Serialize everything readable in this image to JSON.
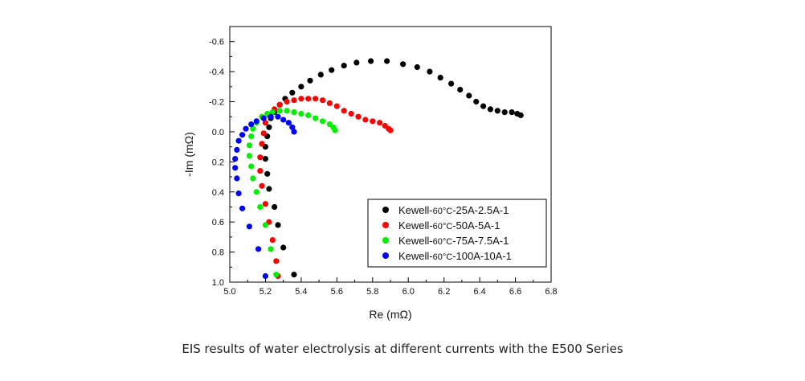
{
  "caption": "EIS results of water electrolysis at different currents with the E500 Series",
  "chart_data": {
    "type": "scatter",
    "xlabel": "Re (mΩ)",
    "ylabel": "-Im (mΩ)",
    "xlim": [
      5.0,
      6.8
    ],
    "ylim": [
      -0.7,
      1.0
    ],
    "y_inverted": true,
    "x_ticks": [
      "5.0",
      "5.2",
      "5.4",
      "5.6",
      "5.8",
      "6.0",
      "6.2",
      "6.4",
      "6.6",
      "6.8"
    ],
    "y_ticks": [
      "-0.6",
      "-0.4",
      "-0.2",
      "0.0",
      "0.2",
      "0.4",
      "0.6",
      "0.8",
      "1.0"
    ],
    "legend_position": "bottom-right",
    "series": [
      {
        "name": "Kewell-60°C-25A-2.5A-1",
        "color": "#000000",
        "points": [
          [
            5.36,
            0.95
          ],
          [
            5.3,
            0.77
          ],
          [
            5.27,
            0.62
          ],
          [
            5.25,
            0.5
          ],
          [
            5.22,
            0.38
          ],
          [
            5.21,
            0.28
          ],
          [
            5.2,
            0.18
          ],
          [
            5.2,
            0.1
          ],
          [
            5.21,
            0.03
          ],
          [
            5.22,
            -0.03
          ],
          [
            5.23,
            -0.09
          ],
          [
            5.25,
            -0.13
          ],
          [
            5.28,
            -0.18
          ],
          [
            5.31,
            -0.22
          ],
          [
            5.35,
            -0.26
          ],
          [
            5.4,
            -0.3
          ],
          [
            5.45,
            -0.34
          ],
          [
            5.51,
            -0.38
          ],
          [
            5.57,
            -0.41
          ],
          [
            5.64,
            -0.44
          ],
          [
            5.71,
            -0.46
          ],
          [
            5.79,
            -0.47
          ],
          [
            5.88,
            -0.47
          ],
          [
            5.97,
            -0.45
          ],
          [
            6.05,
            -0.43
          ],
          [
            6.12,
            -0.4
          ],
          [
            6.18,
            -0.36
          ],
          [
            6.24,
            -0.32
          ],
          [
            6.29,
            -0.28
          ],
          [
            6.34,
            -0.24
          ],
          [
            6.38,
            -0.2
          ],
          [
            6.42,
            -0.17
          ],
          [
            6.46,
            -0.15
          ],
          [
            6.5,
            -0.14
          ],
          [
            6.54,
            -0.13
          ],
          [
            6.58,
            -0.13
          ],
          [
            6.61,
            -0.12
          ],
          [
            6.63,
            -0.11
          ]
        ]
      },
      {
        "name": "Kewell-60°C-50A-5A-1",
        "color": "#ff0000",
        "points": [
          [
            5.27,
            0.96
          ],
          [
            5.26,
            0.86
          ],
          [
            5.24,
            0.72
          ],
          [
            5.22,
            0.6
          ],
          [
            5.2,
            0.48
          ],
          [
            5.18,
            0.36
          ],
          [
            5.17,
            0.26
          ],
          [
            5.17,
            0.17
          ],
          [
            5.18,
            0.08
          ],
          [
            5.19,
            0.01
          ],
          [
            5.2,
            -0.06
          ],
          [
            5.22,
            -0.11
          ],
          [
            5.25,
            -0.15
          ],
          [
            5.28,
            -0.18
          ],
          [
            5.32,
            -0.2
          ],
          [
            5.36,
            -0.21
          ],
          [
            5.4,
            -0.22
          ],
          [
            5.44,
            -0.22
          ],
          [
            5.48,
            -0.22
          ],
          [
            5.52,
            -0.21
          ],
          [
            5.56,
            -0.19
          ],
          [
            5.6,
            -0.17
          ],
          [
            5.64,
            -0.14
          ],
          [
            5.68,
            -0.12
          ],
          [
            5.72,
            -0.1
          ],
          [
            5.76,
            -0.08
          ],
          [
            5.8,
            -0.07
          ],
          [
            5.84,
            -0.06
          ],
          [
            5.87,
            -0.04
          ],
          [
            5.89,
            -0.02
          ],
          [
            5.9,
            -0.01
          ]
        ]
      },
      {
        "name": "Kewell-60°C-75A-7.5A-1",
        "color": "#00ee00",
        "points": [
          [
            5.26,
            0.95
          ],
          [
            5.23,
            0.78
          ],
          [
            5.2,
            0.62
          ],
          [
            5.17,
            0.5
          ],
          [
            5.15,
            0.4
          ],
          [
            5.13,
            0.31
          ],
          [
            5.12,
            0.23
          ],
          [
            5.11,
            0.16
          ],
          [
            5.11,
            0.09
          ],
          [
            5.12,
            0.03
          ],
          [
            5.13,
            -0.02
          ],
          [
            5.15,
            -0.06
          ],
          [
            5.18,
            -0.1
          ],
          [
            5.21,
            -0.12
          ],
          [
            5.24,
            -0.13
          ],
          [
            5.28,
            -0.14
          ],
          [
            5.32,
            -0.14
          ],
          [
            5.36,
            -0.13
          ],
          [
            5.4,
            -0.12
          ],
          [
            5.44,
            -0.11
          ],
          [
            5.48,
            -0.09
          ],
          [
            5.52,
            -0.07
          ],
          [
            5.56,
            -0.05
          ],
          [
            5.58,
            -0.03
          ],
          [
            5.59,
            -0.01
          ]
        ]
      },
      {
        "name": "Kewell-60°C-100A-10A-1",
        "color": "#0000ff",
        "points": [
          [
            5.2,
            0.96
          ],
          [
            5.16,
            0.78
          ],
          [
            5.11,
            0.63
          ],
          [
            5.07,
            0.51
          ],
          [
            5.05,
            0.41
          ],
          [
            5.04,
            0.31
          ],
          [
            5.03,
            0.24
          ],
          [
            5.03,
            0.18
          ],
          [
            5.04,
            0.12
          ],
          [
            5.05,
            0.06
          ],
          [
            5.07,
            0.02
          ],
          [
            5.09,
            -0.02
          ],
          [
            5.12,
            -0.05
          ],
          [
            5.15,
            -0.07
          ],
          [
            5.19,
            -0.09
          ],
          [
            5.23,
            -0.1
          ],
          [
            5.27,
            -0.1
          ],
          [
            5.3,
            -0.08
          ],
          [
            5.33,
            -0.06
          ],
          [
            5.35,
            -0.03
          ],
          [
            5.36,
            0.0
          ]
        ]
      }
    ],
    "legend": [
      {
        "prefix": "Kewell-",
        "temp": "60°C",
        "suffix": "-25A-2.5A-1"
      },
      {
        "prefix": "Kewell-",
        "temp": "60°C",
        "suffix": "-50A-5A-1"
      },
      {
        "prefix": "Kewell-",
        "temp": "60°C",
        "suffix": "-75A-7.5A-1"
      },
      {
        "prefix": "Kewell-",
        "temp": "60°C",
        "suffix": "-100A-10A-1"
      }
    ]
  }
}
